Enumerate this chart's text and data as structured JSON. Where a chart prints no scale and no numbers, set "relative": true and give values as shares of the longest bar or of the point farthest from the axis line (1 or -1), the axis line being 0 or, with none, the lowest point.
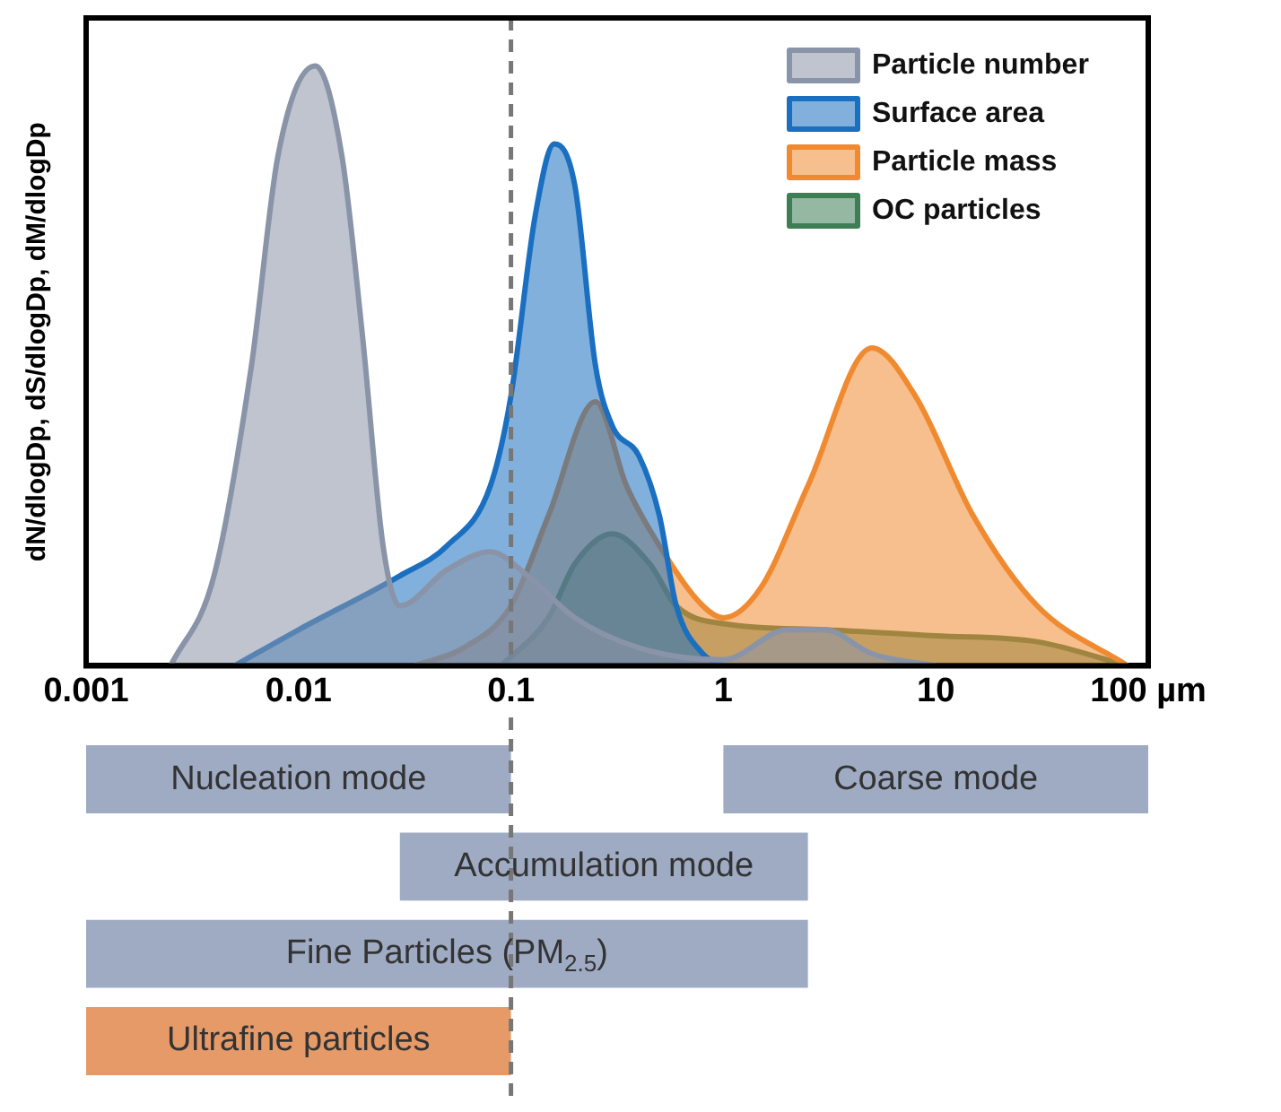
{
  "chart_data": [
    {
      "type": "area",
      "relative": true,
      "log": "x",
      "xlim": [
        0.001,
        100
      ],
      "xticks": [
        0.001,
        0.01,
        0.1,
        1,
        10,
        {
          "value": 100,
          "label": "100 µm"
        }
      ],
      "ylabel": "dN/dlogDp, dS/dlogDp, dM/dlogDp",
      "grid": false,
      "legend": "top right",
      "ref_lines": [
        {
          "axis": "x",
          "value": 0.1,
          "line_style": "dashed",
          "color": "#777777"
        }
      ],
      "series": [
        {
          "name": "Particle number",
          "color": "#8a94a8",
          "x": [
            0.0025,
            0.004,
            0.006,
            0.008,
            0.012,
            0.016,
            0.02,
            0.025,
            0.03,
            0.05,
            0.08,
            0.12,
            0.2,
            0.4,
            1,
            2,
            3,
            5,
            10
          ],
          "values": [
            0,
            0.15,
            0.5,
            0.85,
            1,
            0.85,
            0.55,
            0.2,
            0.1,
            0.16,
            0.19,
            0.15,
            0.08,
            0.03,
            0.01,
            0.06,
            0.06,
            0.02,
            0
          ]
        },
        {
          "name": "Surface area",
          "color": "#1a6fc0",
          "x": [
            0.005,
            0.01,
            0.03,
            0.05,
            0.08,
            0.1,
            0.13,
            0.16,
            0.2,
            0.25,
            0.3,
            0.4,
            0.5,
            0.6,
            0.8,
            1
          ],
          "values": [
            0,
            0.06,
            0.15,
            0.2,
            0.3,
            0.45,
            0.75,
            0.87,
            0.8,
            0.5,
            0.4,
            0.35,
            0.25,
            0.1,
            0.02,
            0
          ]
        },
        {
          "name": "Particle mass",
          "color": "#f08a30",
          "x": [
            0.035,
            0.06,
            0.1,
            0.15,
            0.25,
            0.35,
            0.5,
            0.8,
            1,
            1.5,
            2.5,
            5,
            8,
            15,
            30,
            80
          ],
          "values": [
            0,
            0.03,
            0.1,
            0.25,
            0.44,
            0.3,
            0.2,
            0.1,
            0.08,
            0.13,
            0.3,
            0.53,
            0.45,
            0.25,
            0.1,
            0
          ]
        },
        {
          "name": "OC particles",
          "color": "#3e7e55",
          "x": [
            0.09,
            0.15,
            0.2,
            0.3,
            0.45,
            0.6,
            1,
            3,
            10,
            30,
            80
          ],
          "values": [
            0,
            0.08,
            0.17,
            0.22,
            0.17,
            0.1,
            0.07,
            0.06,
            0.05,
            0.04,
            0
          ]
        }
      ]
    },
    {
      "type": "bar",
      "orientation": "horizontal",
      "log": "x",
      "xlim": [
        0.001,
        100
      ],
      "categories": [
        null,
        null,
        null,
        null
      ],
      "ref_lines": [
        {
          "axis": "x",
          "value": 0.1,
          "line_style": "dashed",
          "color": "#777777"
        }
      ],
      "series": [
        {
          "values": [
            0.099,
            2.47,
            2.499,
            0.099
          ],
          "base": [
            0.001,
            0.03,
            0.001,
            0.001
          ],
          "colors": [
            "#8d9cb8",
            "#8d9cb8",
            "#8d9cb8",
            "#e0884d"
          ],
          "value_labels": [
            "Nucleation mode",
            "Accumulation mode",
            "Fine Particles (PM$_{2.5}$)",
            "Ultrafine particles"
          ]
        },
        {
          "values": [
            99,
            null,
            null,
            null
          ],
          "base": [
            1,
            null,
            null,
            null
          ],
          "colors": [
            "#8d9cb8",
            null,
            null,
            null
          ],
          "value_labels": [
            "Coarse mode",
            null,
            null,
            null
          ]
        }
      ]
    }
  ]
}
